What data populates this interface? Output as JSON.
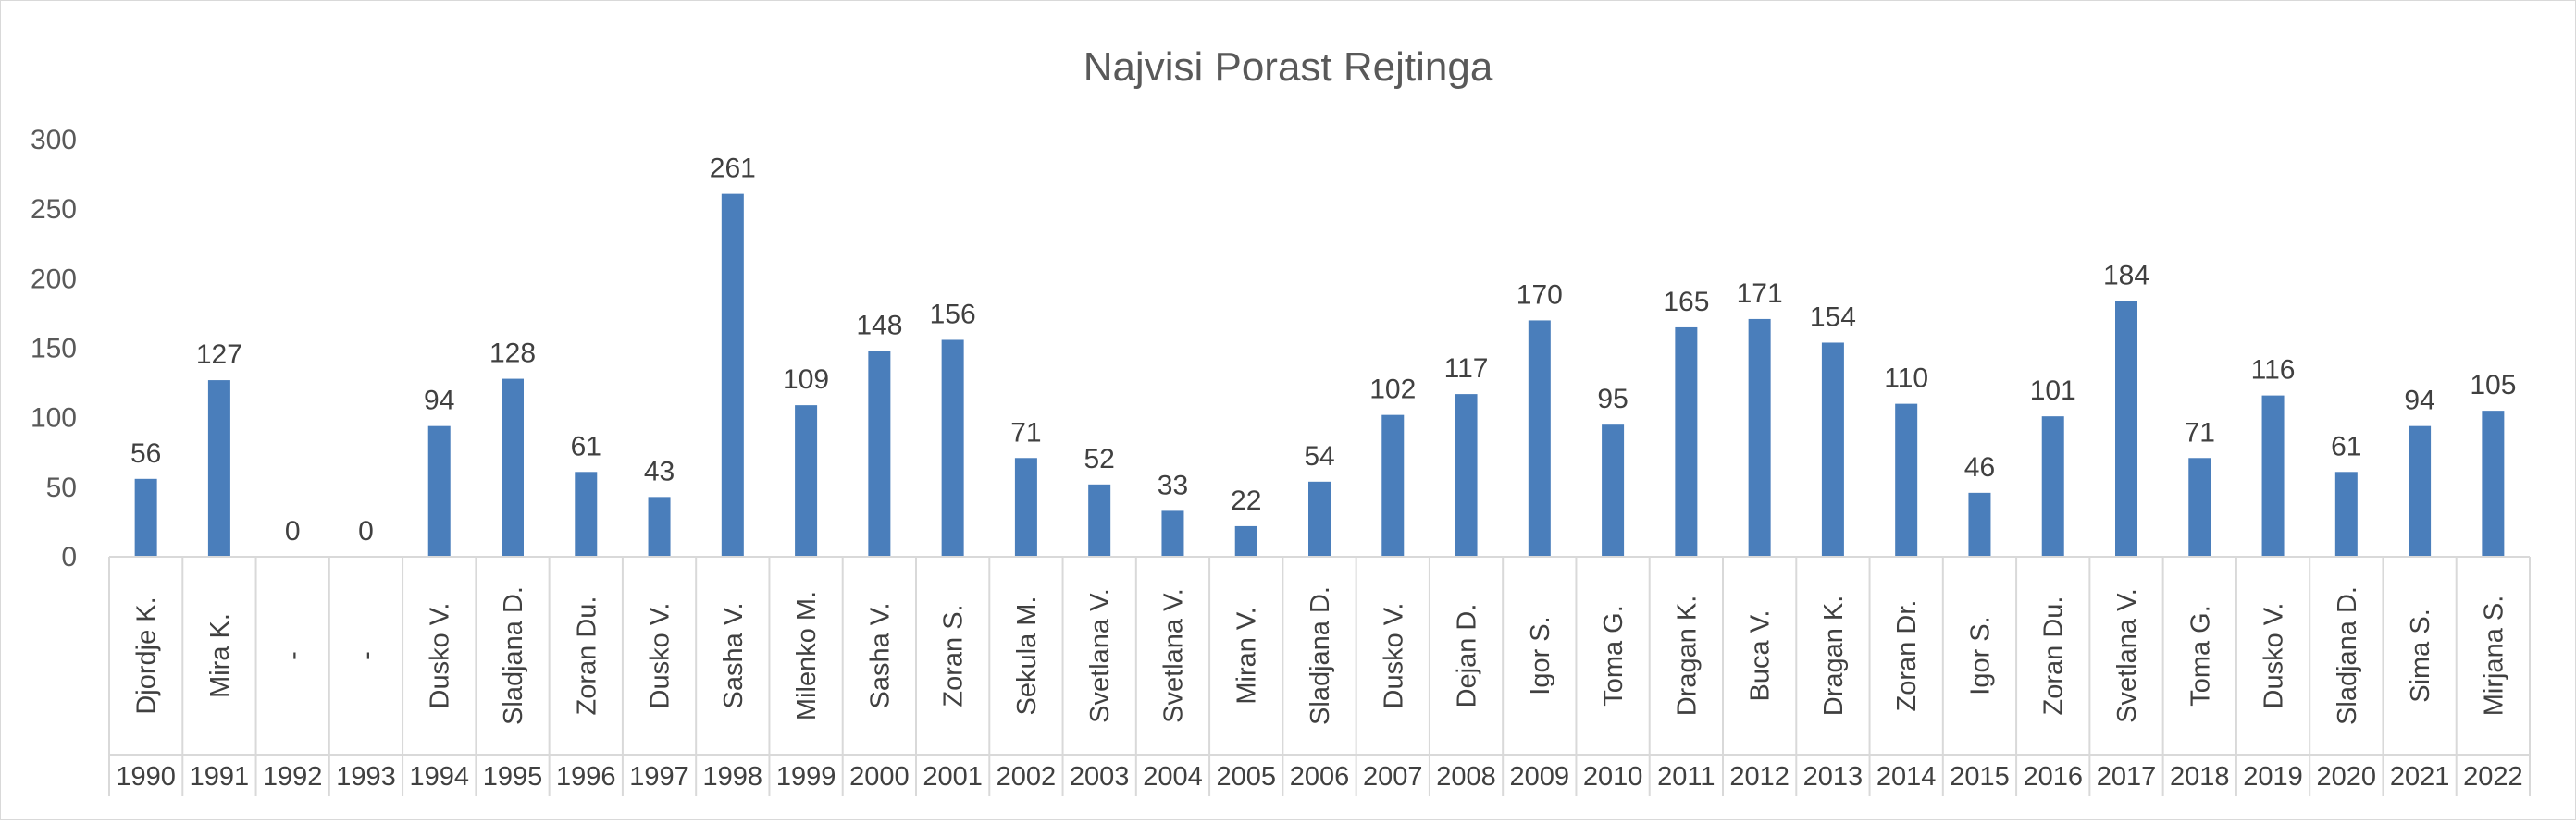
{
  "chart_data": {
    "type": "bar",
    "title": "Najvisi Porast Rejtinga",
    "xlabel": "",
    "ylabel": "",
    "ylim": [
      0,
      300
    ],
    "yticks": [
      0,
      50,
      100,
      150,
      200,
      250,
      300
    ],
    "grid": false,
    "legend": "none",
    "bar_color": "#4a7ebb",
    "categories": [
      {
        "year": "1990",
        "name": "Djordje K."
      },
      {
        "year": "1991",
        "name": "Mira K."
      },
      {
        "year": "1992",
        "name": "-"
      },
      {
        "year": "1993",
        "name": "-"
      },
      {
        "year": "1994",
        "name": "Dusko V."
      },
      {
        "year": "1995",
        "name": "Sladjana D."
      },
      {
        "year": "1996",
        "name": "Zoran Du."
      },
      {
        "year": "1997",
        "name": "Dusko V."
      },
      {
        "year": "1998",
        "name": "Sasha V."
      },
      {
        "year": "1999",
        "name": "Milenko M."
      },
      {
        "year": "2000",
        "name": "Sasha V."
      },
      {
        "year": "2001",
        "name": "Zoran S."
      },
      {
        "year": "2002",
        "name": "Sekula M."
      },
      {
        "year": "2003",
        "name": "Svetlana V."
      },
      {
        "year": "2004",
        "name": "Svetlana V."
      },
      {
        "year": "2005",
        "name": "Miran V."
      },
      {
        "year": "2006",
        "name": "Sladjana D."
      },
      {
        "year": "2007",
        "name": "Dusko V."
      },
      {
        "year": "2008",
        "name": "Dejan D."
      },
      {
        "year": "2009",
        "name": "Igor S."
      },
      {
        "year": "2010",
        "name": "Toma G."
      },
      {
        "year": "2011",
        "name": "Dragan K."
      },
      {
        "year": "2012",
        "name": "Buca V."
      },
      {
        "year": "2013",
        "name": "Dragan K."
      },
      {
        "year": "2014",
        "name": "Zoran Dr."
      },
      {
        "year": "2015",
        "name": "Igor S."
      },
      {
        "year": "2016",
        "name": "Zoran Du."
      },
      {
        "year": "2017",
        "name": "Svetlana V."
      },
      {
        "year": "2018",
        "name": "Toma G."
      },
      {
        "year": "2019",
        "name": "Dusko V."
      },
      {
        "year": "2020",
        "name": "Sladjana D."
      },
      {
        "year": "2021",
        "name": "Sima S."
      },
      {
        "year": "2022",
        "name": "Mirjana S."
      }
    ],
    "values": [
      56,
      127,
      0,
      0,
      94,
      128,
      61,
      43,
      261,
      109,
      148,
      156,
      71,
      52,
      33,
      22,
      54,
      102,
      117,
      170,
      95,
      165,
      171,
      154,
      110,
      46,
      101,
      184,
      71,
      116,
      61,
      94,
      105
    ]
  }
}
